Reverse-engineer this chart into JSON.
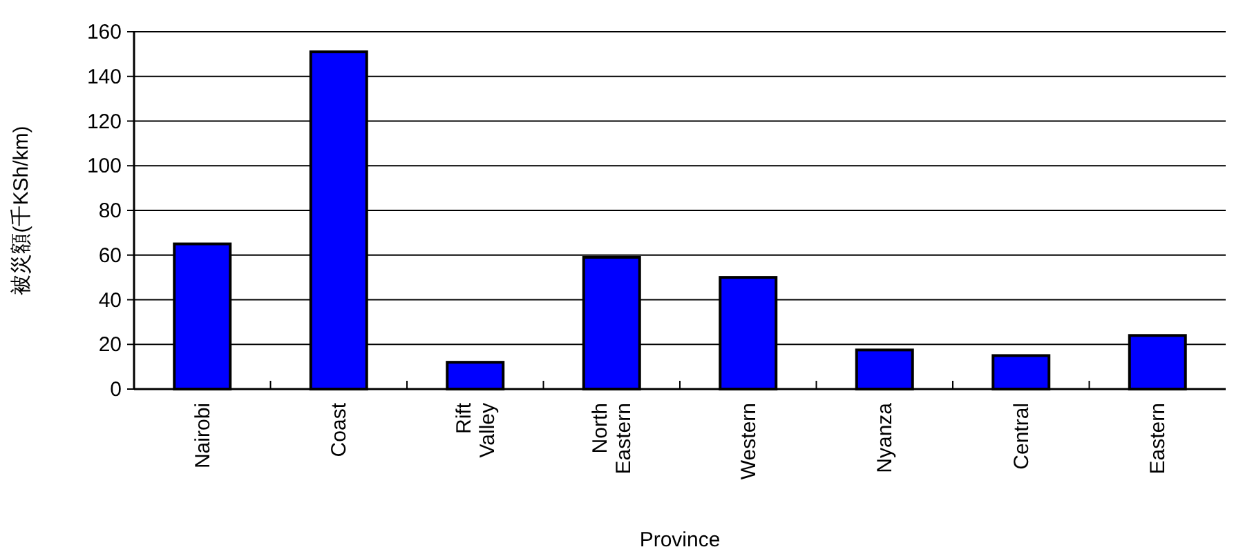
{
  "chart_data": {
    "type": "bar",
    "xlabel": "Province",
    "ylabel": "被災額(千KSh/km)",
    "categories": [
      "Nairobi",
      "Coast",
      "Rift Valley",
      "North Eastern",
      "Western",
      "Nyanza",
      "Central",
      "Eastern"
    ],
    "values": [
      65,
      151,
      12,
      59,
      50,
      17.5,
      15,
      24
    ],
    "color": "#0000ff",
    "ylim": [
      0,
      160
    ],
    "yticks": [
      0,
      20,
      40,
      60,
      80,
      100,
      120,
      140,
      160
    ],
    "grid": "y"
  }
}
